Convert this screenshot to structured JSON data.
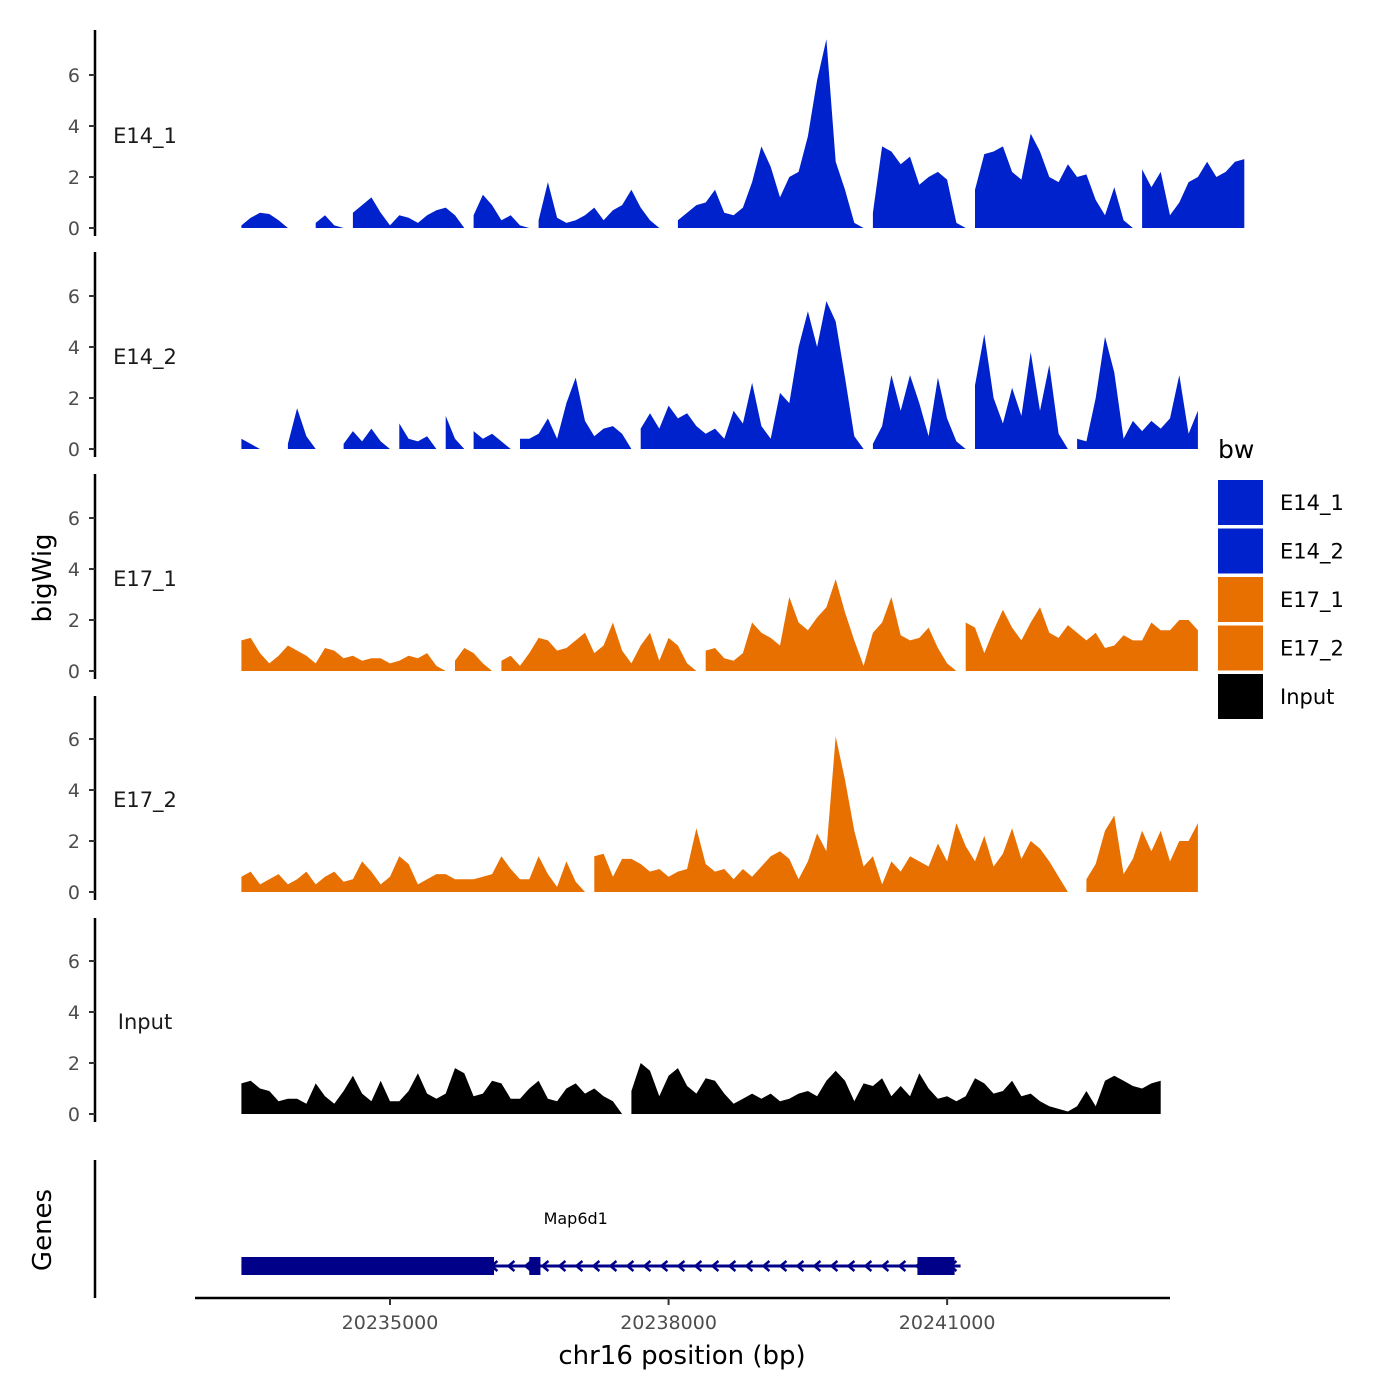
{
  "chart_data": {
    "type": "area",
    "xlabel": "chr16 position (bp)",
    "ylabel": "bigWig",
    "genes_label": "Genes",
    "xlim": [
      20232900,
      20243400
    ],
    "x_ticks": [
      20235000,
      20238000,
      20241000
    ],
    "x_tick_labels": [
      "20235000",
      "20238000",
      "20241000"
    ],
    "ylim": [
      0,
      7.6
    ],
    "y_ticks": [
      0,
      2,
      4,
      6
    ],
    "y_tick_labels": [
      "0",
      "2",
      "4",
      "6"
    ],
    "x_start": 20233400,
    "step": 100,
    "series": [
      {
        "name": "E14_1",
        "label": "E14_1",
        "color": "#0022cc",
        "values": [
          0.1,
          0.4,
          0.6,
          0.55,
          0.3,
          0,
          0,
          0,
          0.2,
          0.5,
          0.1,
          0,
          0.6,
          0.9,
          1.2,
          0.6,
          0.1,
          0.5,
          0.4,
          0.2,
          0.5,
          0.7,
          0.8,
          0.5,
          0,
          0.5,
          1.3,
          0.9,
          0.3,
          0.5,
          0.1,
          0,
          0.3,
          1.8,
          0.4,
          0.2,
          0.3,
          0.5,
          0.8,
          0.3,
          0.7,
          0.9,
          1.5,
          0.8,
          0.3,
          0,
          0,
          0.3,
          0.6,
          0.9,
          1.0,
          1.5,
          0.6,
          0.5,
          0.8,
          1.8,
          3.2,
          2.4,
          1.2,
          2.0,
          2.2,
          3.6,
          5.8,
          7.4,
          2.6,
          1.5,
          0.2,
          0,
          0.6,
          3.2,
          3.0,
          2.5,
          2.8,
          1.7,
          2.0,
          2.2,
          1.9,
          0.2,
          0,
          1.5,
          2.9,
          3.0,
          3.2,
          2.2,
          1.9,
          3.7,
          3.0,
          2.0,
          1.8,
          2.5,
          2.0,
          2.1,
          1.1,
          0.5,
          1.6,
          0.3,
          0,
          2.3,
          1.6,
          2.2,
          0.5,
          1.0,
          1.8,
          2.0,
          2.6,
          2.0,
          2.2,
          2.6,
          2.7
        ]
      },
      {
        "name": "E14_2",
        "label": "E14_2",
        "color": "#0022cc",
        "values": [
          0.4,
          0.2,
          0,
          0,
          0,
          0.2,
          1.6,
          0.5,
          0,
          0,
          0,
          0.2,
          0.7,
          0.3,
          0.8,
          0.3,
          0,
          1.0,
          0.4,
          0.3,
          0.5,
          0,
          1.3,
          0.4,
          0,
          0.7,
          0.4,
          0.6,
          0.3,
          0,
          0.4,
          0.4,
          0.6,
          1.2,
          0.4,
          1.8,
          2.8,
          1.1,
          0.5,
          0.8,
          0.9,
          0.6,
          0,
          0.8,
          1.4,
          0.8,
          1.7,
          1.2,
          1.4,
          0.9,
          0.6,
          0.8,
          0.4,
          1.5,
          1.0,
          2.6,
          0.9,
          0.4,
          2.2,
          1.8,
          4.0,
          5.4,
          4.0,
          5.8,
          5.0,
          2.8,
          0.5,
          0,
          0.2,
          0.9,
          2.9,
          1.5,
          2.9,
          1.8,
          0.5,
          2.8,
          1.2,
          0.3,
          0,
          2.5,
          4.5,
          2.0,
          1.0,
          2.4,
          1.3,
          3.8,
          1.5,
          3.3,
          0.6,
          0,
          0.4,
          0.3,
          2.0,
          4.4,
          3.0,
          0.4,
          1.1,
          0.7,
          1.1,
          0.8,
          1.2,
          2.9,
          0.6,
          1.5
        ]
      },
      {
        "name": "E17_1",
        "label": "E17_1",
        "color": "#e87000",
        "values": [
          1.2,
          1.3,
          0.7,
          0.3,
          0.6,
          1.0,
          0.8,
          0.6,
          0.3,
          0.9,
          0.8,
          0.5,
          0.6,
          0.4,
          0.5,
          0.5,
          0.3,
          0.4,
          0.6,
          0.5,
          0.7,
          0.2,
          0,
          0.4,
          0.9,
          0.7,
          0.3,
          0,
          0.4,
          0.6,
          0.2,
          0.7,
          1.3,
          1.2,
          0.8,
          0.9,
          1.2,
          1.5,
          0.7,
          1.0,
          1.9,
          0.8,
          0.3,
          1.0,
          1.5,
          0.4,
          1.3,
          1.0,
          0.3,
          0,
          0.8,
          0.9,
          0.5,
          0.4,
          0.7,
          1.9,
          1.5,
          1.3,
          1.0,
          2.9,
          1.9,
          1.6,
          2.1,
          2.5,
          3.6,
          2.3,
          1.2,
          0.2,
          1.5,
          1.9,
          2.9,
          1.4,
          1.2,
          1.3,
          1.7,
          0.9,
          0.3,
          0,
          1.9,
          1.7,
          0.7,
          1.6,
          2.4,
          1.7,
          1.2,
          1.9,
          2.5,
          1.5,
          1.3,
          1.8,
          1.5,
          1.2,
          1.5,
          0.9,
          1.0,
          1.4,
          1.2,
          1.2,
          1.9,
          1.6,
          1.6,
          2.0,
          2.0,
          1.6
        ]
      },
      {
        "name": "E17_2",
        "label": "E17_2",
        "color": "#e87000",
        "values": [
          0.6,
          0.8,
          0.3,
          0.5,
          0.7,
          0.3,
          0.5,
          0.8,
          0.3,
          0.6,
          0.8,
          0.4,
          0.5,
          1.2,
          0.8,
          0.3,
          0.6,
          1.4,
          1.1,
          0.3,
          0.5,
          0.7,
          0.7,
          0.5,
          0.5,
          0.5,
          0.6,
          0.7,
          1.4,
          0.9,
          0.5,
          0.5,
          1.4,
          0.7,
          0.2,
          1.2,
          0.4,
          0,
          1.4,
          1.5,
          0.6,
          1.3,
          1.3,
          1.1,
          0.8,
          0.9,
          0.6,
          0.8,
          0.9,
          2.5,
          1.1,
          0.8,
          0.9,
          0.5,
          0.9,
          0.6,
          1.0,
          1.4,
          1.6,
          1.3,
          0.5,
          1.2,
          2.3,
          1.6,
          6.1,
          4.4,
          2.4,
          1.0,
          1.4,
          0.3,
          1.2,
          0.8,
          1.4,
          1.2,
          1.0,
          1.9,
          1.2,
          2.7,
          1.8,
          1.2,
          2.2,
          1.0,
          1.5,
          2.5,
          1.3,
          2.0,
          1.7,
          1.2,
          0.6,
          0,
          0,
          0.5,
          1.1,
          2.4,
          3.0,
          0.7,
          1.3,
          2.4,
          1.6,
          2.4,
          1.2,
          2.0,
          2.0,
          2.7
        ]
      },
      {
        "name": "Input",
        "label": "Input",
        "color": "#000000",
        "values": [
          1.2,
          1.3,
          1.0,
          0.9,
          0.5,
          0.6,
          0.6,
          0.4,
          1.2,
          0.7,
          0.4,
          0.9,
          1.5,
          0.8,
          0.5,
          1.3,
          0.5,
          0.5,
          0.9,
          1.6,
          0.8,
          0.6,
          0.8,
          1.8,
          1.6,
          0.7,
          0.8,
          1.3,
          1.2,
          0.6,
          0.6,
          1.0,
          1.3,
          0.6,
          0.5,
          1.0,
          1.2,
          0.8,
          1.0,
          0.7,
          0.5,
          0,
          0.9,
          2.0,
          1.7,
          0.7,
          1.5,
          1.8,
          1.1,
          0.8,
          1.4,
          1.3,
          0.8,
          0.4,
          0.6,
          0.8,
          0.6,
          0.8,
          0.5,
          0.6,
          0.8,
          0.9,
          0.7,
          1.3,
          1.7,
          1.3,
          0.5,
          1.2,
          1.1,
          1.4,
          0.7,
          1.1,
          0.7,
          1.6,
          1.0,
          0.6,
          0.7,
          0.5,
          0.7,
          1.4,
          1.2,
          0.8,
          0.9,
          1.3,
          0.7,
          0.8,
          0.5,
          0.3,
          0.2,
          0.1,
          0.3,
          0.9,
          0.3,
          1.3,
          1.5,
          1.3,
          1.1,
          1.0,
          1.2,
          1.3
        ]
      }
    ],
    "genes": [
      {
        "name": "Map6d1",
        "label": "Map6d1",
        "strand": "-",
        "color": "#000088",
        "start": 20233400,
        "end": 20241080,
        "exons": [
          [
            20233400,
            20236120
          ],
          [
            20236500,
            20236620
          ],
          [
            20240680,
            20241080
          ]
        ]
      }
    ],
    "legend": {
      "title": "bw",
      "position": "right",
      "items": [
        {
          "label": "E14_1",
          "color": "#0022cc"
        },
        {
          "label": "E14_2",
          "color": "#0022cc"
        },
        {
          "label": "E17_1",
          "color": "#e87000"
        },
        {
          "label": "E17_2",
          "color": "#e87000"
        },
        {
          "label": "Input",
          "color": "#000000"
        }
      ]
    }
  }
}
